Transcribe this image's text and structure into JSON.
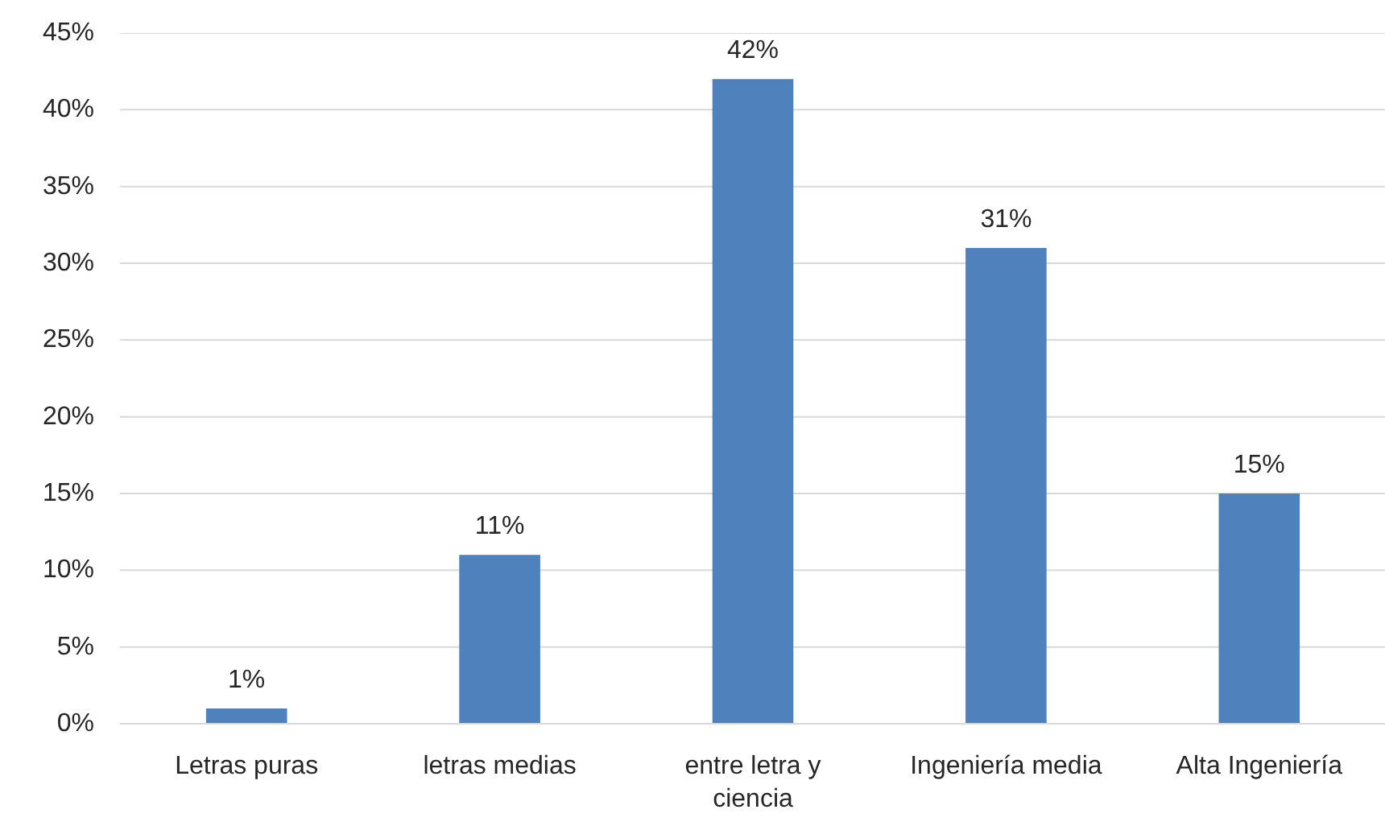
{
  "chart_data": {
    "type": "bar",
    "categories": [
      "Letras puras",
      "letras medias",
      "entre letra y ciencia",
      "Ingeniería media",
      "Alta Ingeniería"
    ],
    "values": [
      1,
      11,
      42,
      31,
      15
    ],
    "color": "#4f81bd",
    "value_labels": [
      "1%",
      "11%",
      "42%",
      "31%",
      "15%"
    ],
    "ylim": [
      0,
      45
    ],
    "yticks": [
      {
        "value": 0,
        "label": "0%"
      },
      {
        "value": 5,
        "label": "5%"
      },
      {
        "value": 10,
        "label": "10%"
      },
      {
        "value": 15,
        "label": "15%"
      },
      {
        "value": 20,
        "label": "20%"
      },
      {
        "value": 25,
        "label": "25%"
      },
      {
        "value": 30,
        "label": "30%"
      },
      {
        "value": 35,
        "label": "35%"
      },
      {
        "value": 40,
        "label": "40%"
      },
      {
        "value": 45,
        "label": "45%"
      }
    ],
    "grid": "y"
  }
}
